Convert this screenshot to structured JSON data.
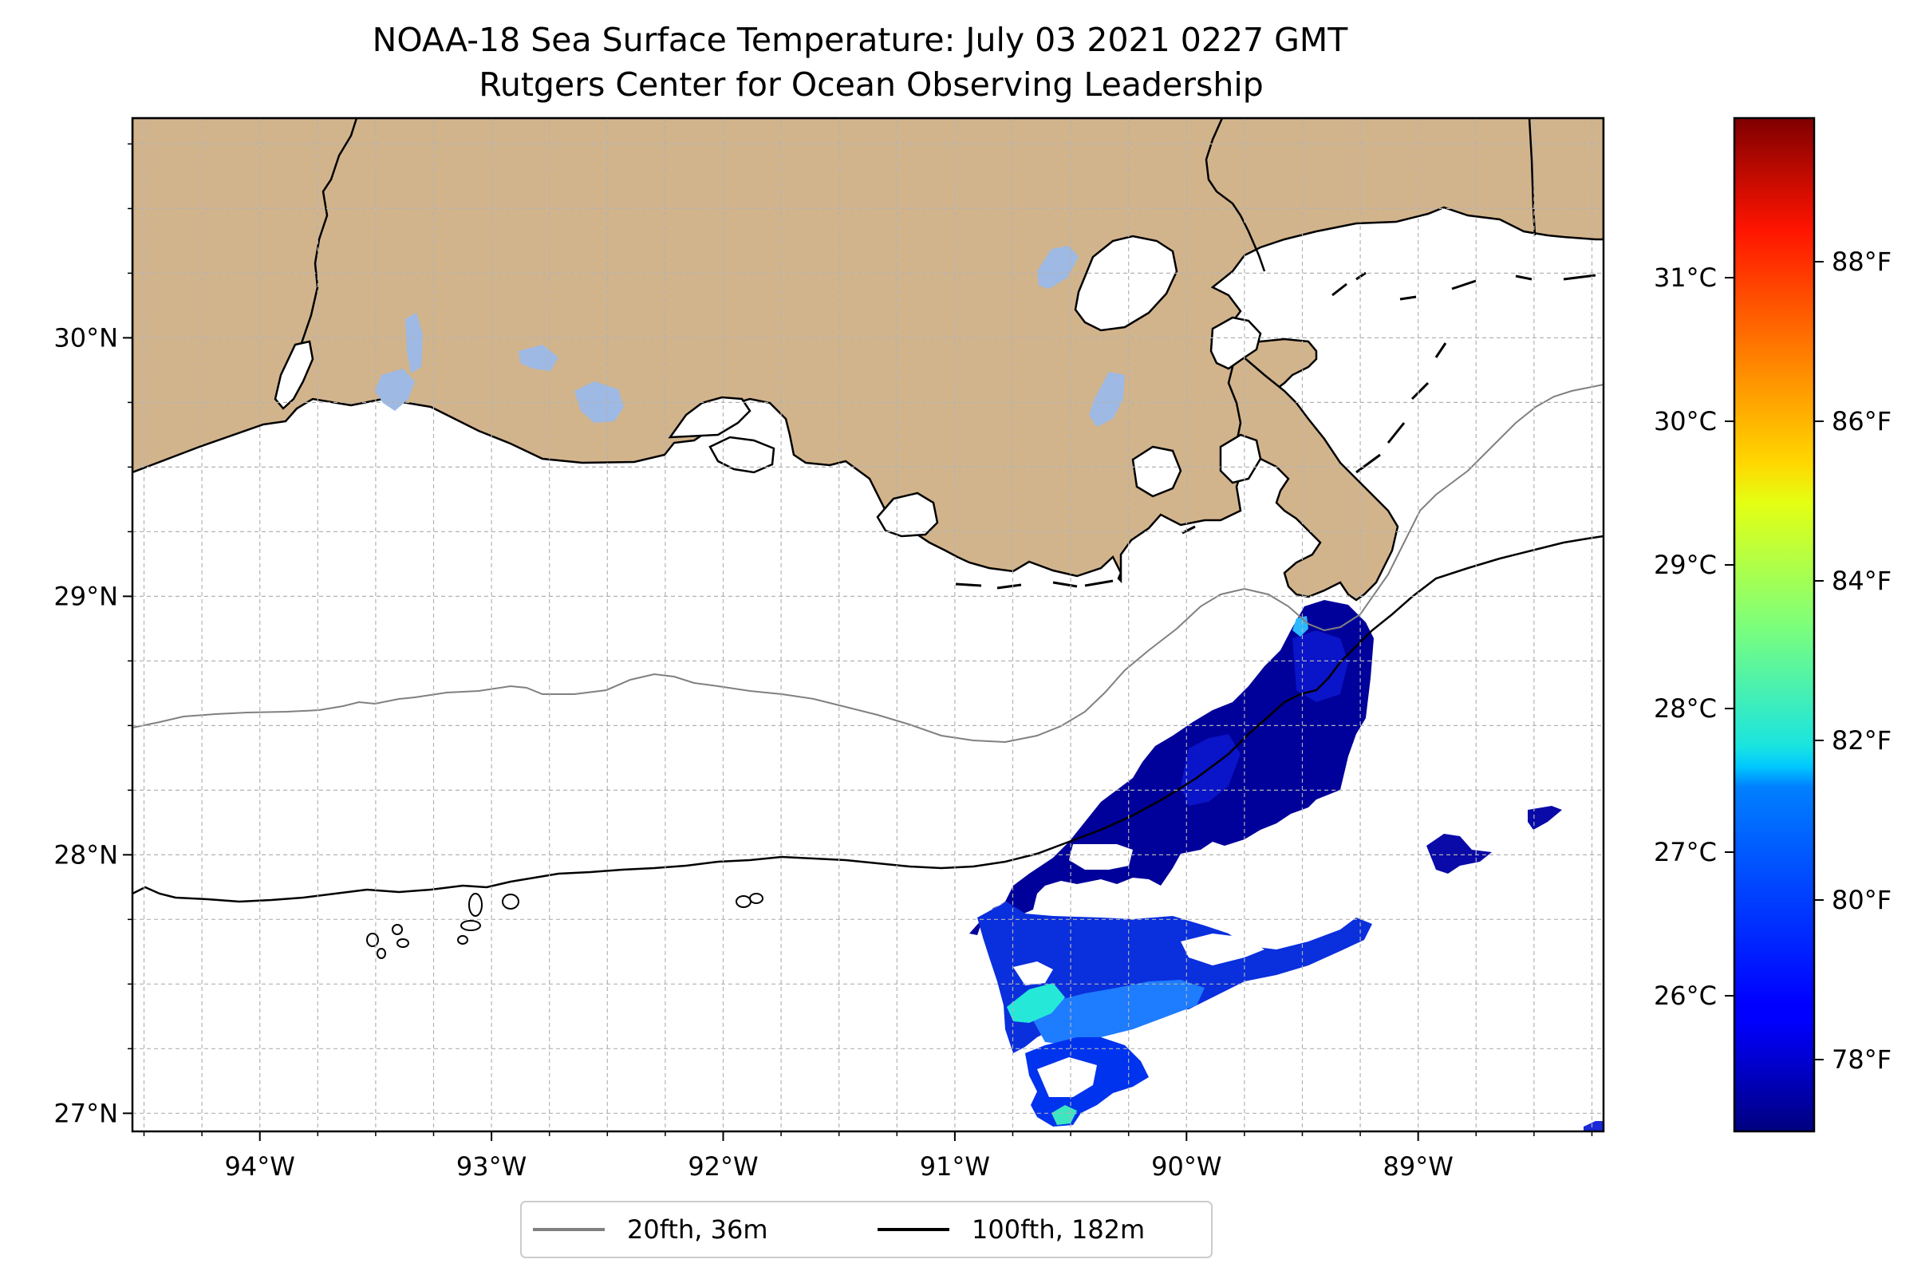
{
  "title": {
    "line1": "NOAA-18 Sea Surface Temperature: July 03 2021 0227 GMT",
    "line2": "Rutgers Center for Ocean Observing Leadership"
  },
  "map": {
    "lon_range": [
      -94.55,
      -88.2
    ],
    "lat_range": [
      26.93,
      30.85
    ],
    "lon_ticks": [
      {
        "value": -94,
        "label": "94°W"
      },
      {
        "value": -93,
        "label": "93°W"
      },
      {
        "value": -92,
        "label": "92°W"
      },
      {
        "value": -91,
        "label": "91°W"
      },
      {
        "value": -90,
        "label": "90°W"
      },
      {
        "value": -89,
        "label": "89°W"
      }
    ],
    "lat_ticks": [
      {
        "value": 27,
        "label": "27°N"
      },
      {
        "value": 28,
        "label": "28°N"
      },
      {
        "value": 29,
        "label": "29°N"
      },
      {
        "value": 30,
        "label": "30°N"
      }
    ],
    "gridlines": true,
    "land_color": "#d2b48c",
    "lake_color": "#9db9e4",
    "ocean_color": "#ffffff"
  },
  "legend": {
    "placement": "below map",
    "entries": [
      {
        "label": "20fth, 36m",
        "color": "#808080"
      },
      {
        "label": "100fth, 182m",
        "color": "#000000"
      }
    ]
  },
  "colorbar": {
    "colormap": "jet",
    "range_f": [
      77.1,
      89.8
    ],
    "celsius_ticks": [
      {
        "value": 26,
        "label": "26°C"
      },
      {
        "value": 27,
        "label": "27°C"
      },
      {
        "value": 28,
        "label": "28°C"
      },
      {
        "value": 29,
        "label": "29°C"
      },
      {
        "value": 30,
        "label": "30°C"
      },
      {
        "value": 31,
        "label": "31°C"
      }
    ],
    "fahrenheit_ticks": [
      {
        "value": 78,
        "label": "78°F"
      },
      {
        "value": 80,
        "label": "80°F"
      },
      {
        "value": 82,
        "label": "82°F"
      },
      {
        "value": 84,
        "label": "84°F"
      },
      {
        "value": 86,
        "label": "86°F"
      },
      {
        "value": 88,
        "label": "88°F"
      }
    ]
  }
}
